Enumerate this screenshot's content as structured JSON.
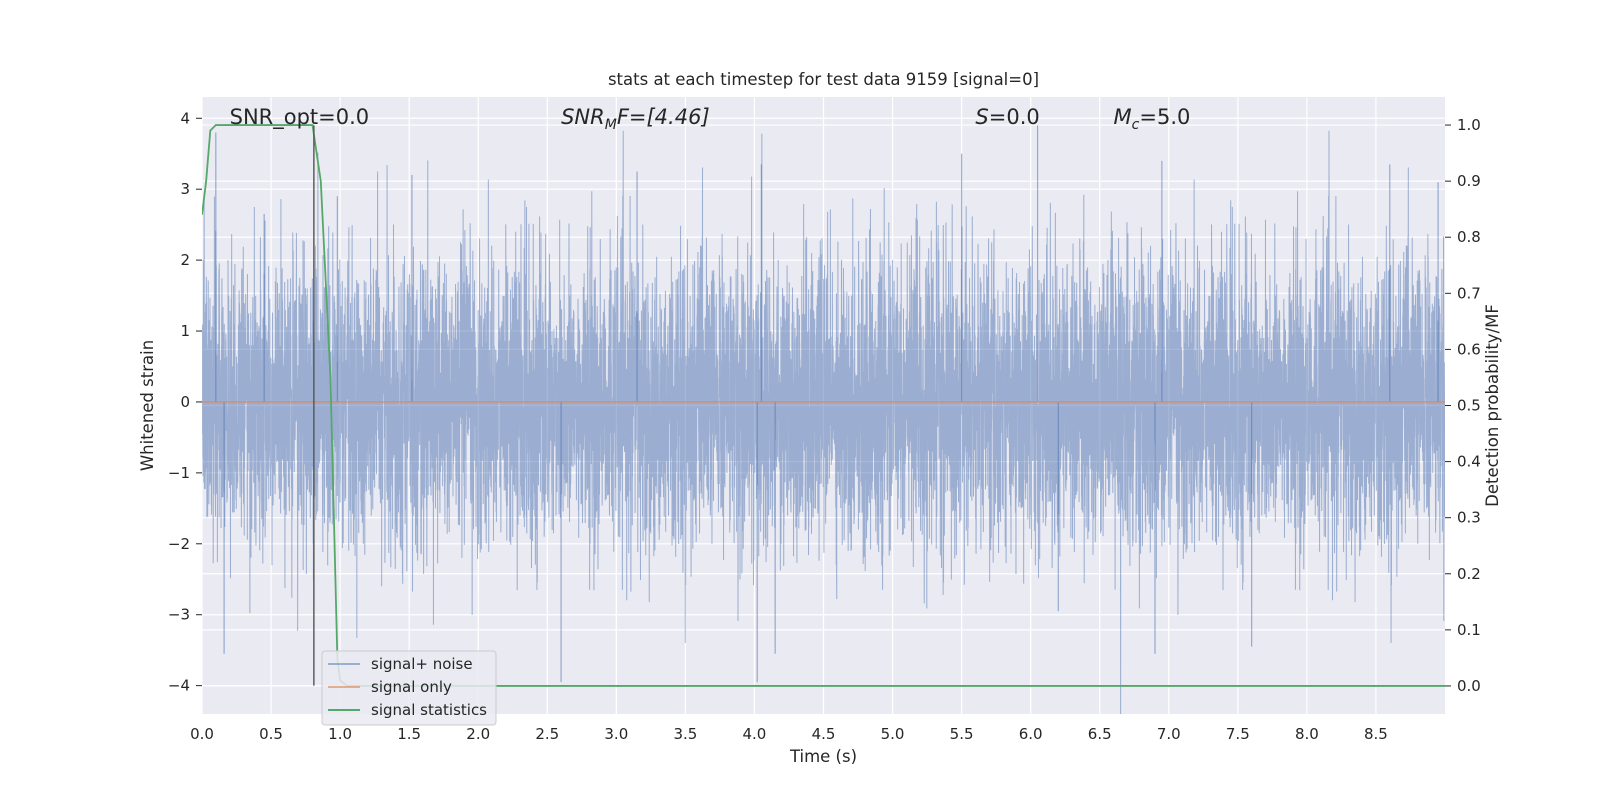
{
  "chart_data": {
    "type": "line",
    "title": "stats at each timestep for test data 9159 [signal=0]",
    "xlabel": "Time (s)",
    "ylabel": "Whitened strain",
    "ylabel_right": "Detection probability/MF",
    "xlim": [
      0.0,
      9.0
    ],
    "ylim": [
      -4.4,
      4.3
    ],
    "ylim_right": [
      -0.05,
      1.05
    ],
    "x_ticks": [
      0.0,
      0.5,
      1.0,
      1.5,
      2.0,
      2.5,
      3.0,
      3.5,
      4.0,
      4.5,
      5.0,
      5.5,
      6.0,
      6.5,
      7.0,
      7.5,
      8.0,
      8.5
    ],
    "y_ticks": [
      -4,
      -3,
      -2,
      -1,
      0,
      1,
      2,
      3,
      4
    ],
    "y_ticks_right": [
      0.0,
      0.1,
      0.2,
      0.3,
      0.4,
      0.5,
      0.6,
      0.7,
      0.8,
      0.9,
      1.0
    ],
    "grid": true,
    "legend_placement": "lower-left",
    "annotations": [
      {
        "x": 0.2,
        "text": "SNR_opt=0.0"
      },
      {
        "x": 2.6,
        "text_main": "SNR",
        "text_sub": "M",
        "text_after": "F=[4.46]"
      },
      {
        "x": 5.6,
        "text_main": "S",
        "text_after": "=0.0"
      },
      {
        "x": 6.6,
        "text_main": "M",
        "text_sub": "c",
        "text_after": "=5.0"
      }
    ],
    "vertical_marker": {
      "x": 0.81,
      "y_range": [
        -4.0,
        3.9
      ]
    },
    "series": [
      {
        "name": "signal+ noise",
        "axis": "left",
        "color": "#4c72b0",
        "kind": "noise",
        "sample_rate": 1024,
        "duration": 9.0,
        "typical_amplitude": 1.0,
        "peaks": [
          {
            "x": 0.1,
            "y": 3.8
          },
          {
            "x": 0.16,
            "y": -3.55
          },
          {
            "x": 0.45,
            "y": 2.65
          },
          {
            "x": 0.98,
            "y": 2.9
          },
          {
            "x": 1.52,
            "y": 3.2
          },
          {
            "x": 2.6,
            "y": -3.95
          },
          {
            "x": 3.15,
            "y": 3.25
          },
          {
            "x": 4.05,
            "y": 3.35
          },
          {
            "x": 4.02,
            "y": -3.95
          },
          {
            "x": 4.15,
            "y": -3.55
          },
          {
            "x": 5.5,
            "y": 3.5
          },
          {
            "x": 6.05,
            "y": 3.9
          },
          {
            "x": 6.2,
            "y": -2.95
          },
          {
            "x": 6.95,
            "y": 3.4
          },
          {
            "x": 6.9,
            "y": -3.55
          },
          {
            "x": 7.6,
            "y": -3.45
          },
          {
            "x": 8.6,
            "y": 3.35
          },
          {
            "x": 8.95,
            "y": 3.1
          }
        ]
      },
      {
        "name": "signal only",
        "axis": "left",
        "color": "#dd8452",
        "x": [
          0.0,
          9.0
        ],
        "y": [
          0.0,
          0.0
        ]
      },
      {
        "name": "signal statistics",
        "axis": "right",
        "color": "#55a868",
        "x": [
          0.0,
          0.03,
          0.06,
          0.1,
          0.2,
          0.5,
          0.8,
          0.86,
          0.93,
          0.98,
          1.0,
          1.05,
          9.0
        ],
        "y": [
          0.84,
          0.9,
          0.99,
          1.0,
          1.0,
          1.0,
          1.0,
          0.9,
          0.55,
          0.05,
          0.01,
          0.0,
          0.0
        ]
      }
    ]
  }
}
